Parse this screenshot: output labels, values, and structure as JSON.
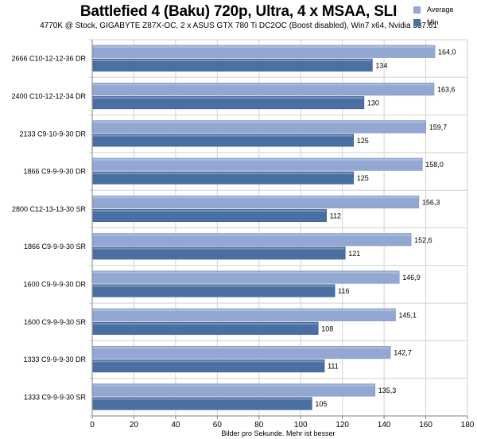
{
  "chart_data": {
    "type": "bar",
    "orientation": "horizontal",
    "title": "Battlefied 4 (Baku) 720p, Ultra, 4 x MSAA, SLI",
    "subtitle": "4770K @ Stock, GIGABYTE Z87X-OC,  2 x ASUS GTX 780 Ti DC2OC (Boost disabled), Win7 x64, Nvidia 337.61",
    "xlabel": "Bilder pro Sekunde.  Mehr  ist besser",
    "xlim": [
      0,
      180
    ],
    "xticks": [
      "0",
      "20",
      "40",
      "60",
      "80",
      "100",
      "120",
      "140",
      "160",
      "180"
    ],
    "grid": true,
    "legend_position": "top-right",
    "categories": [
      "2666 C10-12-12-36 DR",
      "2400 C10-12-12-34 DR",
      "2133 C9-10-9-30 DR",
      "1866 C9-9-9-30 DR",
      "2800 C12-13-13-30 SR",
      "1866 C9-9-9-30 SR",
      "1600 C9-9-9-30 DR",
      "1600 C9-9-9-30 SR",
      "1333 C9-9-9-30 DR",
      "1333 C9-9-9-30 SR"
    ],
    "series": [
      {
        "name": "Average",
        "color": "#93A7D3",
        "values": [
          164.0,
          163.6,
          159.7,
          158.0,
          156.3,
          152.6,
          146.9,
          145.1,
          142.7,
          135.3
        ],
        "labels": [
          "164,0",
          "163,6",
          "159,7",
          "158,0",
          "156,3",
          "152,6",
          "146,9",
          "145,1",
          "142,7",
          "135,3"
        ]
      },
      {
        "name": "Min",
        "color": "#4A6FA3",
        "values": [
          134,
          130,
          125,
          125,
          112,
          121,
          116,
          108,
          111,
          105
        ],
        "labels": [
          "134",
          "130",
          "125",
          "125",
          "112",
          "121",
          "116",
          "108",
          "111",
          "105"
        ]
      }
    ]
  }
}
